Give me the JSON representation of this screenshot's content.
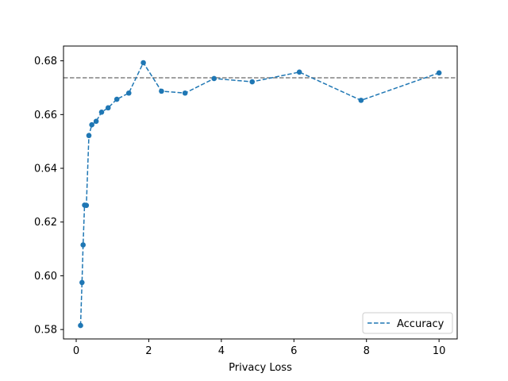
{
  "chart_data": {
    "type": "line",
    "title": "",
    "xlabel": "Privacy Loss",
    "ylabel": "",
    "xlim": [
      -0.35,
      10.5
    ],
    "ylim": [
      0.5765,
      0.6855
    ],
    "xticks": [
      0,
      2,
      4,
      6,
      8,
      10
    ],
    "xtick_labels": [
      "0",
      "2",
      "4",
      "6",
      "8",
      "10"
    ],
    "yticks": [
      0.58,
      0.6,
      0.62,
      0.64,
      0.66,
      0.68
    ],
    "ytick_labels": [
      "0.58",
      "0.60",
      "0.62",
      "0.64",
      "0.66",
      "0.68"
    ],
    "grid": false,
    "legend_position": "lower-right",
    "series": [
      {
        "name": "Accuracy",
        "color": "#1f77b4",
        "line_style": "dashed",
        "marker": "circle",
        "x": [
          0.12,
          0.16,
          0.19,
          0.23,
          0.28,
          0.35,
          0.43,
          0.55,
          0.7,
          0.88,
          1.12,
          1.45,
          1.85,
          2.35,
          3.0,
          3.8,
          4.85,
          6.15,
          7.85,
          10.0
        ],
        "y": [
          0.5815,
          0.5975,
          0.6115,
          0.6263,
          0.6262,
          0.6522,
          0.6562,
          0.6575,
          0.6609,
          0.6625,
          0.6657,
          0.668,
          0.6793,
          0.6687,
          0.668,
          0.6734,
          0.6722,
          0.6758,
          0.6653,
          0.6755
        ]
      }
    ],
    "reference_line": {
      "y": 0.6737,
      "color": "#808080",
      "line_style": "dashed"
    }
  }
}
